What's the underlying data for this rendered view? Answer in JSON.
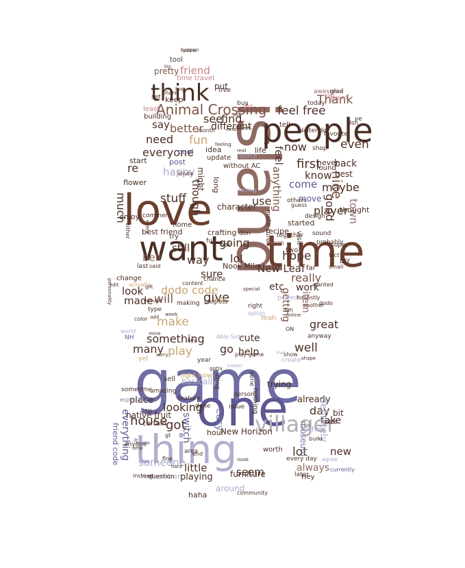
{
  "palette": {
    "dark_brown": "#4a2e24",
    "brown": "#7b5444",
    "rose_brown": "#8f6a63",
    "indigo": "#5c5892",
    "slate_blue": "#7a79a8",
    "lavender": "#a9a9cb",
    "tan": "#c9a46f",
    "pink": "#c77d86",
    "grey": "#b3afb6"
  },
  "words": [
    {
      "text": "game",
      "color": "#6e6ca2",
      "icon": ""
    },
    {
      "text": "island",
      "color": "#8f6a63"
    },
    {
      "text": "one",
      "color": "#5c5892"
    },
    {
      "text": "thing",
      "color": "#b0afd0"
    },
    {
      "text": "time",
      "color": "#6b3f2e"
    },
    {
      "text": "love",
      "color": "#6b3f2e"
    },
    {
      "text": "people",
      "color": "#4a2e24"
    },
    {
      "text": "want",
      "color": "#4a2e24"
    },
    {
      "text": "villager",
      "color": "#b3afb6"
    },
    {
      "text": "think",
      "color": "#4a2e24"
    },
    {
      "text": "Animal Crossing",
      "color": "#7b5444"
    },
    {
      "text": "feel free",
      "color": "#4a2e24"
    },
    {
      "text": "friend",
      "color": "#c77d86"
    },
    {
      "text": "pretty",
      "color": "#7b5444"
    },
    {
      "text": "time travel",
      "color": "#c77d86"
    },
    {
      "text": "put",
      "color": "#4a2e24"
    },
    {
      "text": "Thank",
      "color": "#7b5444"
    },
    {
      "text": "find",
      "color": "#4a2e24"
    },
    {
      "text": "see",
      "color": "#4a2e24"
    },
    {
      "text": "say",
      "color": "#4a2e24"
    },
    {
      "text": "better",
      "color": "#7b5444"
    },
    {
      "text": "different",
      "color": "#4a2e24"
    },
    {
      "text": "need",
      "color": "#4a2e24"
    },
    {
      "text": "fun",
      "color": "#c9a46f"
    },
    {
      "text": "everyone",
      "color": "#4a2e24"
    },
    {
      "text": "now",
      "color": "#4a2e24"
    },
    {
      "text": "even",
      "color": "#4a2e24"
    },
    {
      "text": "first",
      "color": "#4a2e24"
    },
    {
      "text": "know",
      "color": "#4a2e24"
    },
    {
      "text": "nice",
      "color": "#7b5444"
    },
    {
      "text": "maybe",
      "color": "#4a2e24"
    },
    {
      "text": "player",
      "color": "#4a2e24"
    },
    {
      "text": "good",
      "color": "#4a2e24"
    },
    {
      "text": "town",
      "color": "#8f6a63"
    },
    {
      "text": "anything",
      "color": "#7b5444"
    },
    {
      "text": "use",
      "color": "#4a2e24"
    },
    {
      "text": "come",
      "color": "#5c5892"
    },
    {
      "text": "feel",
      "color": "#4a2e24"
    },
    {
      "text": "happy",
      "color": "#a9a9cb"
    },
    {
      "text": "re",
      "color": "#4a2e24"
    },
    {
      "text": "much",
      "color": "#4a2e24"
    },
    {
      "text": "stuff",
      "color": "#4a2e24"
    },
    {
      "text": "though",
      "color": "#4a2e24"
    },
    {
      "text": "character",
      "color": "#4a2e24"
    },
    {
      "text": "going",
      "color": "#4a2e24"
    },
    {
      "text": "lol",
      "color": "#4a2e24"
    },
    {
      "text": "hope",
      "color": "#4a2e24"
    },
    {
      "text": "New Leaf",
      "color": "#4a2e24"
    },
    {
      "text": "really",
      "color": "#7b5444"
    },
    {
      "text": "still",
      "color": "#4a2e24"
    },
    {
      "text": "way",
      "color": "#4a2e24"
    },
    {
      "text": "bell",
      "color": "#8f6a63"
    },
    {
      "text": "sure",
      "color": "#4a2e24"
    },
    {
      "text": "work",
      "color": "#4a2e24"
    },
    {
      "text": "look",
      "color": "#4a2e24"
    },
    {
      "text": "will",
      "color": "#7b5444"
    },
    {
      "text": "made",
      "color": "#4a2e24"
    },
    {
      "text": "give",
      "color": "#4a2e24"
    },
    {
      "text": "dodo code",
      "color": "#c9a46f"
    },
    {
      "text": "make",
      "color": "#c9a46f"
    },
    {
      "text": "something",
      "color": "#4a2e24"
    },
    {
      "text": "many",
      "color": "#4a2e24"
    },
    {
      "text": "play",
      "color": "#c9a46f"
    },
    {
      "text": "go",
      "color": "#4a2e24"
    },
    {
      "text": "help",
      "color": "#4a2e24"
    },
    {
      "text": "well",
      "color": "#4a2e24"
    },
    {
      "text": "great",
      "color": "#4a2e24"
    },
    {
      "text": "item",
      "color": "#8f6a63"
    },
    {
      "text": "getting",
      "color": "#7b5444"
    },
    {
      "text": "cute",
      "color": "#4a2e24"
    },
    {
      "text": "etc",
      "color": "#4a2e24"
    },
    {
      "text": "best friend",
      "color": "#4a2e24"
    },
    {
      "text": "Nook Mile",
      "color": "#4a2e24"
    },
    {
      "text": "looking",
      "color": "#4a2e24"
    },
    {
      "text": "house",
      "color": "#4a2e24"
    },
    {
      "text": "got",
      "color": "#4a2e24"
    },
    {
      "text": "someone",
      "color": "#a9a9cb"
    },
    {
      "text": "little",
      "color": "#4a2e24"
    },
    {
      "text": "everything",
      "color": "#5c5892"
    },
    {
      "text": "hour",
      "color": "#4a2e24"
    },
    {
      "text": "New Horizon",
      "color": "#4a2e24"
    },
    {
      "text": "switch",
      "color": "#5c5892"
    },
    {
      "text": "seem",
      "color": "#4a2e24"
    },
    {
      "text": "lot",
      "color": "#4a2e24"
    },
    {
      "text": "new",
      "color": "#4a2e24"
    },
    {
      "text": "always",
      "color": "#8f6a63"
    },
    {
      "text": "day",
      "color": "#4a2e24"
    },
    {
      "text": "take",
      "color": "#4a2e24"
    },
    {
      "text": "already",
      "color": "#4a2e24"
    },
    {
      "text": "definitely",
      "color": "#a9a9cb"
    },
    {
      "text": "bit",
      "color": "#4a2e24"
    },
    {
      "text": "friend code",
      "color": "#5c5892"
    },
    {
      "text": "place",
      "color": "#4a2e24"
    },
    {
      "text": "playing",
      "color": "#4a2e24"
    },
    {
      "text": "around",
      "color": "#a9a9cb"
    },
    {
      "text": "furniture",
      "color": "#4a2e24"
    },
    {
      "text": "haha",
      "color": "#4a2e24"
    },
    {
      "text": "easy",
      "color": "#7a79a8"
    },
    {
      "text": "trying",
      "color": "#4a2e24"
    },
    {
      "text": "museum",
      "color": "#7a79a8"
    },
    {
      "text": "enjoy",
      "color": "#4a2e24"
    },
    {
      "text": "flower",
      "color": "#4a2e24"
    },
    {
      "text": "start",
      "color": "#4a2e24"
    },
    {
      "text": "post",
      "color": "#5c5892"
    },
    {
      "text": "cool",
      "color": "#5c5892"
    },
    {
      "text": "might",
      "color": "#4a2e24"
    },
    {
      "text": "long",
      "color": "#4a2e24"
    },
    {
      "text": "idea",
      "color": "#4a2e24"
    },
    {
      "text": "life",
      "color": "#4a2e24"
    },
    {
      "text": "update",
      "color": "#4a2e24"
    },
    {
      "text": "without AC",
      "color": "#4a2e24"
    },
    {
      "text": "tell",
      "color": "#4a2e24"
    },
    {
      "text": "never",
      "color": "#4a2e24"
    },
    {
      "text": "found",
      "color": "#4a2e24"
    },
    {
      "text": "back",
      "color": "#4a2e24"
    },
    {
      "text": "best",
      "color": "#4a2e24"
    },
    {
      "text": "move",
      "color": "#5c5892"
    },
    {
      "text": "thought",
      "color": "#4a2e24"
    },
    {
      "text": "keep",
      "color": "#4a2e24"
    },
    {
      "text": "tool",
      "color": "#4a2e24"
    },
    {
      "text": "awesome",
      "color": "#8f6a63"
    },
    {
      "text": "glad",
      "color": "#4a2e24"
    },
    {
      "text": "point",
      "color": "#c77d86"
    },
    {
      "text": "today",
      "color": "#4a2e24"
    },
    {
      "text": "buy",
      "color": "#4a2e24"
    },
    {
      "text": "tree",
      "color": "#4a2e24"
    },
    {
      "text": "Nintendo",
      "color": "#4a2e24"
    },
    {
      "text": "favorite",
      "color": "#4a2e24"
    },
    {
      "text": "shop",
      "color": "#4a2e24"
    },
    {
      "text": "ve",
      "color": "#4a2e24"
    },
    {
      "text": "fish",
      "color": "#4a2e24"
    },
    {
      "text": "least",
      "color": "#c77d86"
    },
    {
      "text": "building",
      "color": "#4a2e24"
    },
    {
      "text": "set",
      "color": "#4a2e24"
    },
    {
      "text": "share",
      "color": "#4a2e24"
    },
    {
      "text": "month",
      "color": "#4a2e24"
    },
    {
      "text": "comment",
      "color": "#4a2e24"
    },
    {
      "text": "home",
      "color": "#4a2e24"
    },
    {
      "text": "crafting",
      "color": "#4a2e24"
    },
    {
      "text": "don",
      "color": "#4a2e24"
    },
    {
      "text": "full",
      "color": "#4a2e24"
    },
    {
      "text": "ask",
      "color": "#4a2e24"
    },
    {
      "text": "recipe",
      "color": "#4a2e24"
    },
    {
      "text": "started",
      "color": "#4a2e24"
    },
    {
      "text": "design",
      "color": "#4a2e24"
    },
    {
      "text": "together",
      "color": "#4a2e24"
    },
    {
      "text": "visit",
      "color": "#4a2e24"
    },
    {
      "text": "two",
      "color": "#4a2e24"
    },
    {
      "text": "sound",
      "color": "#4a2e24"
    },
    {
      "text": "probably",
      "color": "#4a2e24"
    },
    {
      "text": "super",
      "color": "#4a2e24"
    },
    {
      "text": "fact",
      "color": "#4a2e24"
    },
    {
      "text": "DIY",
      "color": "#4a2e24"
    },
    {
      "text": "small",
      "color": "#4a2e24"
    },
    {
      "text": "mean",
      "color": "#8f6a63"
    },
    {
      "text": "far",
      "color": "#4a2e24"
    },
    {
      "text": "wanted",
      "color": "#4a2e24"
    },
    {
      "text": "perfect",
      "color": "#a9a9cb"
    },
    {
      "text": "honestly",
      "color": "#4a2e24"
    },
    {
      "text": "try",
      "color": "#4a2e24"
    },
    {
      "text": "last",
      "color": "#4a2e24"
    },
    {
      "text": "said",
      "color": "#4a2e24"
    },
    {
      "text": "change",
      "color": "#4a2e24"
    },
    {
      "text": "actually",
      "color": "#c9a46f"
    },
    {
      "text": "chance",
      "color": "#4a2e24"
    },
    {
      "text": "able",
      "color": "#c9a46f"
    },
    {
      "text": "making",
      "color": "#4a2e24"
    },
    {
      "text": "right",
      "color": "#4a2e24"
    },
    {
      "text": "Yeah",
      "color": "#c9a46f"
    },
    {
      "text": "Able Sister",
      "color": "#a9a9cb"
    },
    {
      "text": "play game",
      "color": "#4a2e24"
    },
    {
      "text": "create",
      "color": "#a9a9cb"
    },
    {
      "text": "yet",
      "color": "#c9a46f"
    },
    {
      "text": "world",
      "color": "#a9a9cb"
    },
    {
      "text": "NH",
      "color": "#5c5892"
    },
    {
      "text": "year",
      "color": "#4a2e24"
    },
    {
      "text": "sell",
      "color": "#4a2e24"
    },
    {
      "text": "right now",
      "color": "#c9a46f"
    },
    {
      "text": "basically",
      "color": "#a9a9cb"
    },
    {
      "text": "using",
      "color": "#4a2e24"
    },
    {
      "text": "serie",
      "color": "#4a2e24"
    },
    {
      "text": "sometime",
      "color": "#4a2e24"
    },
    {
      "text": "especially",
      "color": "#7a79a8"
    },
    {
      "text": "amazing",
      "color": "#4a2e24"
    },
    {
      "text": "native fruit",
      "color": "#4a2e24"
    },
    {
      "text": "certain",
      "color": "#4a2e24"
    },
    {
      "text": "person",
      "color": "#4a2e24"
    },
    {
      "text": "nothing",
      "color": "#4a2e24"
    },
    {
      "text": "issue",
      "color": "#4a2e24"
    },
    {
      "text": "feature",
      "color": "#4a2e24"
    },
    {
      "text": "done",
      "color": "#4a2e24"
    },
    {
      "text": "other",
      "color": "#a9a9cb"
    },
    {
      "text": "build",
      "color": "#4a2e24"
    },
    {
      "text": "worth",
      "color": "#4a2e24"
    },
    {
      "text": "area",
      "color": "#4a2e24"
    },
    {
      "text": "Hey",
      "color": "#4a2e24"
    },
    {
      "text": "later",
      "color": "#4a2e24"
    },
    {
      "text": "currently",
      "color": "#5c5892"
    },
    {
      "text": "every day",
      "color": "#4a2e24"
    },
    {
      "text": "end",
      "color": "#4a2e24"
    },
    {
      "text": "anyone",
      "color": "#4a2e24"
    },
    {
      "text": "gt",
      "color": "#4a2e24"
    },
    {
      "text": "fine",
      "color": "#4a2e24"
    },
    {
      "text": "remember",
      "color": "#a9a9cb"
    },
    {
      "text": "instead",
      "color": "#4a2e24"
    },
    {
      "text": "question",
      "color": "#4a2e24"
    },
    {
      "text": "community",
      "color": "#4a2e24"
    },
    {
      "text": "make sure",
      "color": "#4a2e24"
    },
    {
      "text": "space",
      "color": "#a9a9cb"
    },
    {
      "text": "saying",
      "color": "#a9a9cb"
    },
    {
      "text": "others",
      "color": "#4a2e24"
    },
    {
      "text": "guess",
      "color": "#4a2e24"
    },
    {
      "text": "kinda",
      "color": "#4a2e24"
    },
    {
      "text": "dodo",
      "color": "#4a2e24"
    },
    {
      "text": "ON",
      "color": "#4a2e24"
    },
    {
      "text": "enough",
      "color": "#4a2e24"
    },
    {
      "text": "type",
      "color": "#4a2e24"
    },
    {
      "text": "color",
      "color": "#4a2e24"
    },
    {
      "text": "content",
      "color": "#4a2e24"
    },
    {
      "text": "progress",
      "color": "#4a2e24"
    },
    {
      "text": "personality",
      "color": "#4a2e24"
    },
    {
      "text": "either",
      "color": "#4a2e24"
    },
    {
      "text": "event",
      "color": "#4a2e24"
    },
    {
      "text": "special",
      "color": "#4a2e24"
    },
    {
      "text": "option",
      "color": "#a9a9cb"
    },
    {
      "text": "another",
      "color": "#4a2e24"
    },
    {
      "text": "anyway",
      "color": "#4a2e24"
    },
    {
      "text": "us",
      "color": "#4a2e24"
    },
    {
      "text": "wish",
      "color": "#4a2e24"
    },
    {
      "text": "tip",
      "color": "#4a2e24"
    },
    {
      "text": "lt",
      "color": "#4a2e24"
    },
    {
      "text": "amp",
      "color": "#4a2e24"
    },
    {
      "text": "agree",
      "color": "#a9a9cb"
    },
    {
      "text": "fan",
      "color": "#4a2e24"
    },
    {
      "text": "show",
      "color": "#4a2e24"
    },
    {
      "text": "gift",
      "color": "#4a2e24"
    },
    {
      "text": "edit",
      "color": "#4a2e24"
    },
    {
      "text": "let",
      "color": "#c77d86"
    },
    {
      "text": "happen",
      "color": "#4a2e24"
    },
    {
      "text": "real",
      "color": "#4a2e24"
    },
    {
      "text": "exist",
      "color": "#4a2e24"
    },
    {
      "text": "feeling",
      "color": "#4a2e24"
    },
    {
      "text": "sweet",
      "color": "#4a2e24"
    },
    {
      "text": "old",
      "color": "#4a2e24"
    },
    {
      "text": "sorry",
      "color": "#4a2e24"
    },
    {
      "text": "mine",
      "color": "#4a2e24"
    },
    {
      "text": "add",
      "color": "#4a2e24"
    },
    {
      "text": "week",
      "color": "#4a2e24"
    },
    {
      "text": "bug",
      "color": "#4a2e24"
    },
    {
      "text": "part",
      "color": "#c77d86"
    },
    {
      "text": "big",
      "color": "#4a2e24"
    },
    {
      "text": "cyclone",
      "color": "#4a2e24"
    },
    {
      "text": "gotta",
      "color": "#4a2e24"
    },
    {
      "text": "hey",
      "color": "#4a2e24"
    },
    {
      "text": "easter",
      "color": "#a9a9cb"
    },
    {
      "text": "shape",
      "color": "#4a2e24"
    },
    {
      "text": "live",
      "color": "#a9a9cb"
    },
    {
      "text": "hard",
      "color": "#4a2e24"
    },
    {
      "text": "nook",
      "color": "#4a2e24"
    },
    {
      "text": "online",
      "color": "#4a2e24"
    }
  ]
}
